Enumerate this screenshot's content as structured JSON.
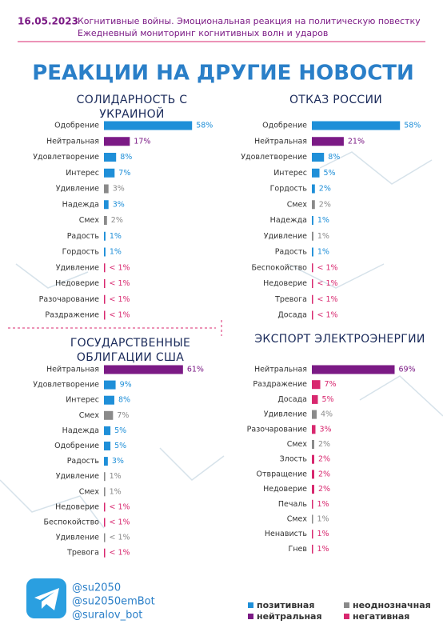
{
  "header": {
    "date": "16.05.2023",
    "lines": [
      "Когнитивные войны. Эмоциональная реакция на политическую повестку",
      "Ежедневный мониторинг когнитивных волн и ударов"
    ],
    "title": "РЕАКЦИИ НА ДРУГИЕ НОВОСТИ"
  },
  "chart_data": [
    {
      "type": "bar",
      "orientation": "horizontal",
      "title": "СОЛИДАРНОСТЬ С УКРАИНОЙ",
      "categories": [
        "Одобрение",
        "Нейтральная",
        "Удовлетворение",
        "Интерес",
        "Удивление",
        "Надежда",
        "Смех",
        "Радость",
        "Гордость",
        "Удивление",
        "Недоверие",
        "Разочарование",
        "Раздражение"
      ],
      "values": [
        58,
        17,
        8,
        7,
        3,
        3,
        2,
        1,
        1,
        0.5,
        0.5,
        0.5,
        0.5
      ],
      "value_labels": [
        "58%",
        "17%",
        "8%",
        "7%",
        "3%",
        "3%",
        "2%",
        "1%",
        "1%",
        "< 1%",
        "< 1%",
        "< 1%",
        "< 1%"
      ],
      "colors": [
        "#1f8fd8",
        "#7b1a85",
        "#1f8fd8",
        "#1f8fd8",
        "#8a8a8a",
        "#1f8fd8",
        "#8a8a8a",
        "#1f8fd8",
        "#1f8fd8",
        "#d8286f",
        "#d8286f",
        "#d8286f",
        "#d8286f"
      ]
    },
    {
      "type": "bar",
      "orientation": "horizontal",
      "title": "ОТКАЗ РОССИИ",
      "categories": [
        "Одобрение",
        "Нейтральная",
        "Удовлетворение",
        "Интерес",
        "Гордость",
        "Смех",
        "Надежда",
        "Удивление",
        "Радость",
        "Беспокойство",
        "Недоверие",
        "Тревога",
        "Досада"
      ],
      "values": [
        58,
        21,
        8,
        5,
        2,
        2,
        1,
        1,
        1,
        0.5,
        0.5,
        0.5,
        0.5
      ],
      "value_labels": [
        "58%",
        "21%",
        "8%",
        "5%",
        "2%",
        "2%",
        "1%",
        "1%",
        "1%",
        "< 1%",
        "< 1%",
        "< 1%",
        "< 1%"
      ],
      "colors": [
        "#1f8fd8",
        "#7b1a85",
        "#1f8fd8",
        "#1f8fd8",
        "#1f8fd8",
        "#8a8a8a",
        "#1f8fd8",
        "#8a8a8a",
        "#1f8fd8",
        "#d8286f",
        "#d8286f",
        "#d8286f",
        "#d8286f"
      ]
    },
    {
      "type": "bar",
      "orientation": "horizontal",
      "title": "ГОСУДАРСТВЕННЫЕ ОБЛИГАЦИИ США",
      "categories": [
        "Нейтральная",
        "Удовлетворение",
        "Интерес",
        "Смех",
        "Надежда",
        "Одобрение",
        "Радость",
        "Удивление",
        "Смех",
        "Недоверие",
        "Беспокойство",
        "Удивление",
        "Тревога"
      ],
      "values": [
        61,
        9,
        8,
        7,
        5,
        5,
        3,
        1,
        1,
        0.5,
        0.5,
        0.5,
        0.5
      ],
      "value_labels": [
        "61%",
        "9%",
        "8%",
        "7%",
        "5%",
        "5%",
        "3%",
        "1%",
        "1%",
        "< 1%",
        "< 1%",
        "< 1%",
        "< 1%"
      ],
      "colors": [
        "#7b1a85",
        "#1f8fd8",
        "#1f8fd8",
        "#8a8a8a",
        "#1f8fd8",
        "#1f8fd8",
        "#1f8fd8",
        "#8a8a8a",
        "#8a8a8a",
        "#d8286f",
        "#d8286f",
        "#8a8a8a",
        "#d8286f"
      ]
    },
    {
      "type": "bar",
      "orientation": "horizontal",
      "title": "ЭКСПОРТ ЭЛЕКТРОЭНЕРГИИ",
      "categories": [
        "Нейтральная",
        "Раздражение",
        "Досада",
        "Удивление",
        "Разочарование",
        "Смех",
        "Злость",
        "Отвращение",
        "Недоверие",
        "Печаль",
        "Смех",
        "Ненависть",
        "Гнев"
      ],
      "values": [
        69,
        7,
        5,
        4,
        3,
        2,
        2,
        2,
        2,
        1,
        1,
        1,
        1
      ],
      "value_labels": [
        "69%",
        "7%",
        "5%",
        "4%",
        "3%",
        "2%",
        "2%",
        "2%",
        "2%",
        "1%",
        "1%",
        "1%",
        "1%"
      ],
      "colors": [
        "#7b1a85",
        "#d8286f",
        "#d8286f",
        "#8a8a8a",
        "#d8286f",
        "#8a8a8a",
        "#d8286f",
        "#d8286f",
        "#d8286f",
        "#d8286f",
        "#8a8a8a",
        "#d8286f",
        "#d8286f"
      ]
    }
  ],
  "legend": [
    {
      "name": "позитивная",
      "color": "#1f8fd8"
    },
    {
      "name": "неоднозначная",
      "color": "#8a8a8a"
    },
    {
      "name": "нейтральная",
      "color": "#7b1a85"
    },
    {
      "name": "негативная",
      "color": "#d8286f"
    }
  ],
  "footer": {
    "handles": [
      "@su2050",
      "@su2050emBot",
      "@suralov_bot"
    ]
  }
}
